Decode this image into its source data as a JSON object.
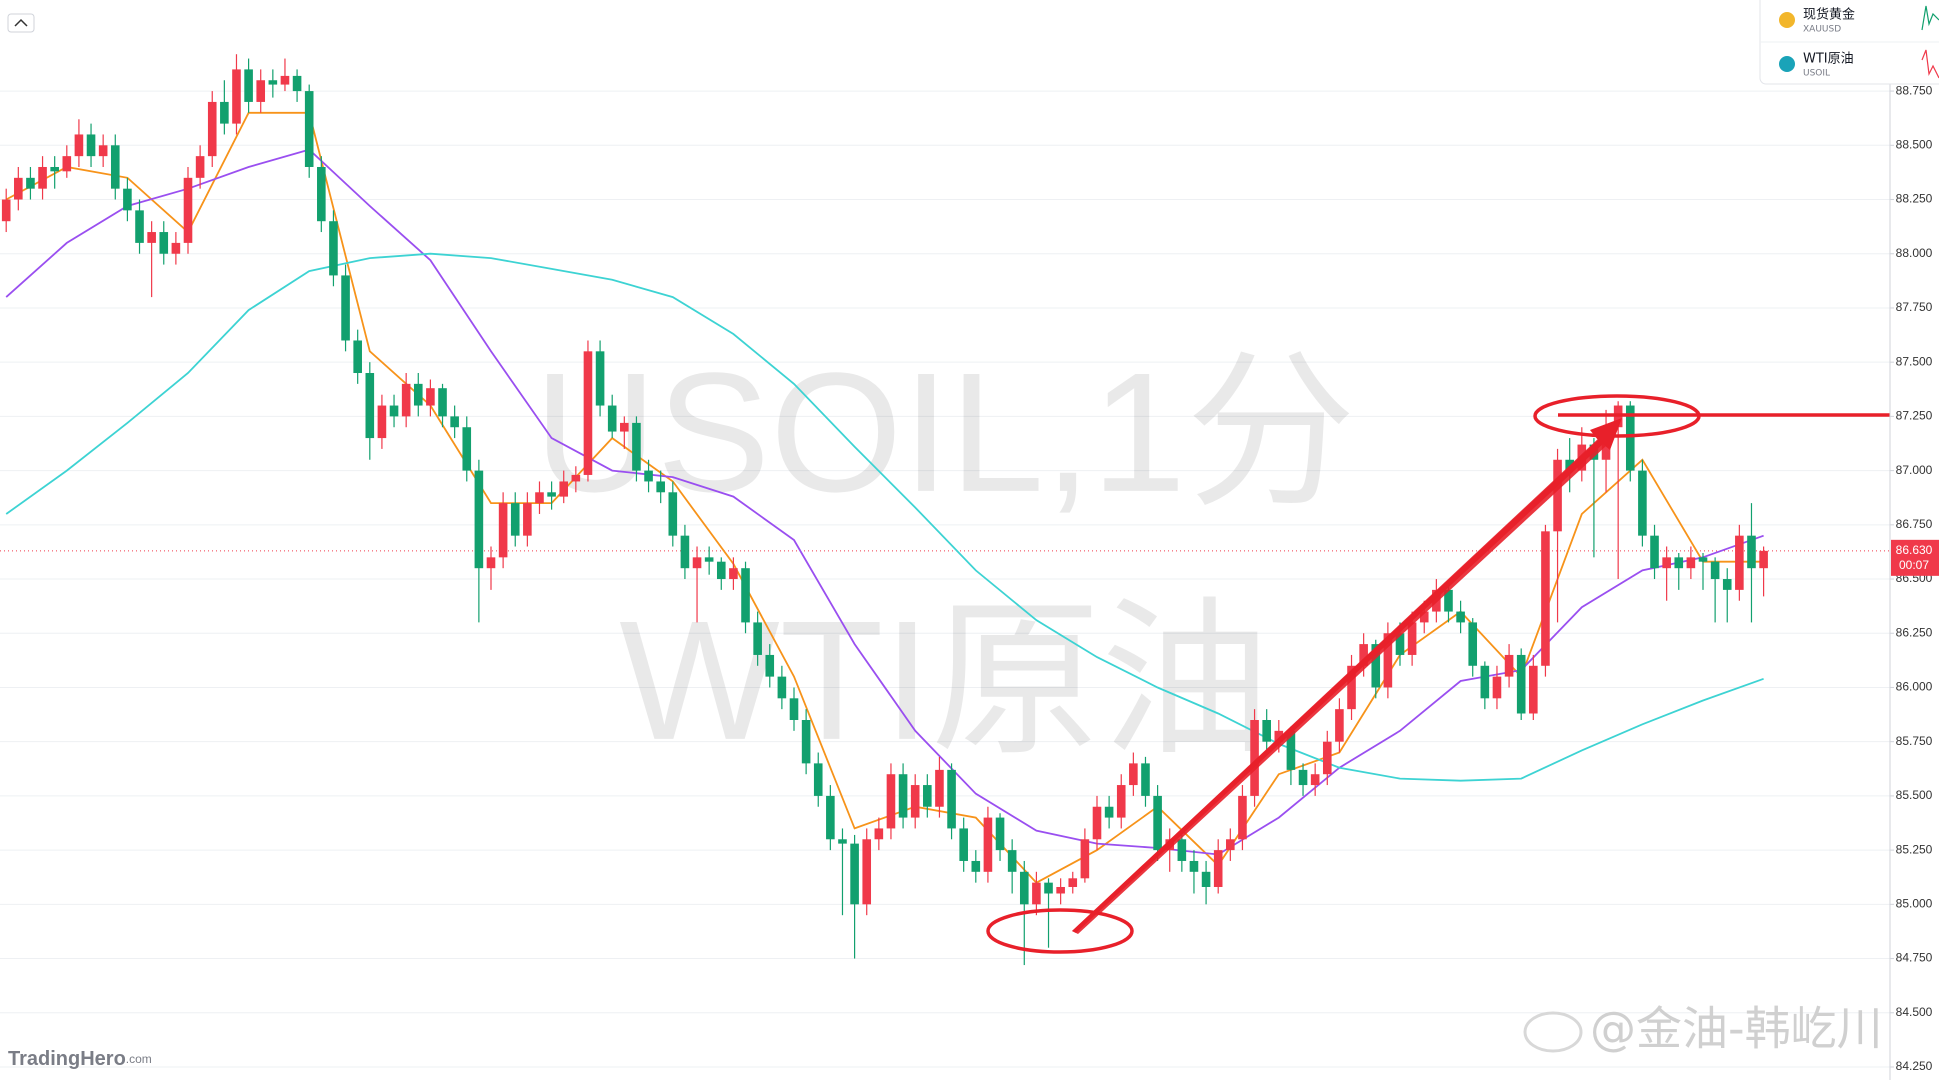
{
  "chart_data": {
    "type": "candlestick",
    "watermark": [
      "USOIL,1分",
      "WTI原油"
    ],
    "up_color": "#f0394a",
    "down_color": "#12a06e",
    "candles": [
      [
        88.15,
        88.3,
        88.1,
        88.25
      ],
      [
        88.25,
        88.4,
        88.2,
        88.35
      ],
      [
        88.35,
        88.4,
        88.25,
        88.3
      ],
      [
        88.3,
        88.45,
        88.25,
        88.4
      ],
      [
        88.4,
        88.45,
        88.3,
        88.38
      ],
      [
        88.38,
        88.5,
        88.35,
        88.45
      ],
      [
        88.45,
        88.62,
        88.4,
        88.55
      ],
      [
        88.55,
        88.6,
        88.4,
        88.45
      ],
      [
        88.45,
        88.55,
        88.4,
        88.5
      ],
      [
        88.5,
        88.55,
        88.25,
        88.3
      ],
      [
        88.3,
        88.35,
        88.15,
        88.2
      ],
      [
        88.2,
        88.25,
        88.0,
        88.05
      ],
      [
        88.05,
        88.15,
        87.8,
        88.1
      ],
      [
        88.1,
        88.15,
        87.95,
        88.0
      ],
      [
        88.0,
        88.1,
        87.95,
        88.05
      ],
      [
        88.05,
        88.4,
        88.0,
        88.35
      ],
      [
        88.35,
        88.5,
        88.3,
        88.45
      ],
      [
        88.45,
        88.75,
        88.4,
        88.7
      ],
      [
        88.7,
        88.8,
        88.55,
        88.6
      ],
      [
        88.6,
        88.92,
        88.55,
        88.85
      ],
      [
        88.85,
        88.9,
        88.65,
        88.7
      ],
      [
        88.7,
        88.85,
        88.65,
        88.8
      ],
      [
        88.8,
        88.85,
        88.72,
        88.78
      ],
      [
        88.78,
        88.9,
        88.75,
        88.82
      ],
      [
        88.82,
        88.85,
        88.7,
        88.75
      ],
      [
        88.75,
        88.78,
        88.35,
        88.4
      ],
      [
        88.4,
        88.45,
        88.1,
        88.15
      ],
      [
        88.15,
        88.2,
        87.85,
        87.9
      ],
      [
        87.9,
        87.95,
        87.55,
        87.6
      ],
      [
        87.6,
        87.65,
        87.4,
        87.45
      ],
      [
        87.45,
        87.5,
        87.05,
        87.15
      ],
      [
        87.15,
        87.35,
        87.1,
        87.3
      ],
      [
        87.3,
        87.35,
        87.2,
        87.25
      ],
      [
        87.25,
        87.45,
        87.2,
        87.4
      ],
      [
        87.4,
        87.45,
        87.25,
        87.3
      ],
      [
        87.3,
        87.42,
        87.25,
        87.38
      ],
      [
        87.38,
        87.4,
        87.2,
        87.25
      ],
      [
        87.25,
        87.3,
        87.15,
        87.2
      ],
      [
        87.2,
        87.25,
        86.95,
        87.0
      ],
      [
        87.0,
        87.05,
        86.3,
        86.55
      ],
      [
        86.55,
        86.65,
        86.45,
        86.6
      ],
      [
        86.6,
        86.9,
        86.55,
        86.85
      ],
      [
        86.85,
        86.9,
        86.65,
        86.7
      ],
      [
        86.7,
        86.9,
        86.65,
        86.85
      ],
      [
        86.85,
        86.95,
        86.8,
        86.9
      ],
      [
        86.9,
        86.95,
        86.82,
        86.88
      ],
      [
        86.88,
        87.0,
        86.85,
        86.95
      ],
      [
        86.95,
        87.02,
        86.9,
        86.98
      ],
      [
        86.98,
        87.6,
        86.95,
        87.55
      ],
      [
        87.55,
        87.6,
        87.25,
        87.3
      ],
      [
        87.3,
        87.35,
        87.15,
        87.18
      ],
      [
        87.18,
        87.25,
        87.1,
        87.22
      ],
      [
        87.22,
        87.25,
        86.95,
        87.0
      ],
      [
        87.0,
        87.05,
        86.9,
        86.95
      ],
      [
        86.95,
        87.0,
        86.85,
        86.9
      ],
      [
        86.9,
        86.95,
        86.65,
        86.7
      ],
      [
        86.7,
        86.75,
        86.5,
        86.55
      ],
      [
        86.55,
        86.65,
        86.3,
        86.6
      ],
      [
        86.6,
        86.65,
        86.52,
        86.58
      ],
      [
        86.58,
        86.6,
        86.45,
        86.5
      ],
      [
        86.5,
        86.6,
        86.45,
        86.55
      ],
      [
        86.55,
        86.58,
        86.25,
        86.3
      ],
      [
        86.3,
        86.35,
        86.1,
        86.15
      ],
      [
        86.15,
        86.2,
        86.0,
        86.05
      ],
      [
        86.05,
        86.1,
        85.9,
        85.95
      ],
      [
        85.95,
        86.0,
        85.8,
        85.85
      ],
      [
        85.85,
        85.9,
        85.6,
        85.65
      ],
      [
        85.65,
        85.7,
        85.45,
        85.5
      ],
      [
        85.5,
        85.55,
        85.25,
        85.3
      ],
      [
        85.3,
        85.35,
        84.95,
        85.28
      ],
      [
        85.28,
        85.32,
        84.75,
        85.0
      ],
      [
        85.0,
        85.35,
        84.95,
        85.3
      ],
      [
        85.3,
        85.4,
        85.25,
        85.35
      ],
      [
        85.35,
        85.65,
        85.3,
        85.6
      ],
      [
        85.6,
        85.65,
        85.35,
        85.4
      ],
      [
        85.4,
        85.6,
        85.35,
        85.55
      ],
      [
        85.55,
        85.6,
        85.4,
        85.45
      ],
      [
        85.45,
        85.68,
        85.4,
        85.62
      ],
      [
        85.62,
        85.65,
        85.3,
        85.35
      ],
      [
        85.35,
        85.4,
        85.15,
        85.2
      ],
      [
        85.2,
        85.25,
        85.1,
        85.15
      ],
      [
        85.15,
        85.45,
        85.1,
        85.4
      ],
      [
        85.4,
        85.42,
        85.2,
        85.25
      ],
      [
        85.25,
        85.3,
        85.05,
        85.15
      ],
      [
        85.15,
        85.2,
        84.72,
        85.0
      ],
      [
        85.0,
        85.15,
        84.95,
        85.1
      ],
      [
        85.1,
        85.12,
        84.8,
        85.05
      ],
      [
        85.05,
        85.12,
        85.0,
        85.08
      ],
      [
        85.08,
        85.15,
        85.05,
        85.12
      ],
      [
        85.12,
        85.35,
        85.1,
        85.3
      ],
      [
        85.3,
        85.5,
        85.25,
        85.45
      ],
      [
        85.45,
        85.5,
        85.35,
        85.4
      ],
      [
        85.4,
        85.6,
        85.35,
        85.55
      ],
      [
        85.55,
        85.7,
        85.5,
        85.65
      ],
      [
        85.65,
        85.68,
        85.45,
        85.5
      ],
      [
        85.5,
        85.55,
        85.2,
        85.25
      ],
      [
        85.25,
        85.35,
        85.15,
        85.3
      ],
      [
        85.3,
        85.32,
        85.15,
        85.2
      ],
      [
        85.2,
        85.25,
        85.05,
        85.15
      ],
      [
        85.15,
        85.2,
        85.0,
        85.08
      ],
      [
        85.08,
        85.3,
        85.05,
        85.25
      ],
      [
        85.25,
        85.35,
        85.2,
        85.3
      ],
      [
        85.3,
        85.55,
        85.25,
        85.5
      ],
      [
        85.5,
        85.9,
        85.45,
        85.85
      ],
      [
        85.85,
        85.9,
        85.7,
        85.75
      ],
      [
        85.75,
        85.85,
        85.7,
        85.8
      ],
      [
        85.8,
        85.82,
        85.55,
        85.62
      ],
      [
        85.62,
        85.65,
        85.5,
        85.55
      ],
      [
        85.55,
        85.65,
        85.5,
        85.6
      ],
      [
        85.6,
        85.8,
        85.55,
        85.75
      ],
      [
        85.75,
        85.95,
        85.7,
        85.9
      ],
      [
        85.9,
        86.15,
        85.85,
        86.1
      ],
      [
        86.1,
        86.25,
        86.05,
        86.2
      ],
      [
        86.2,
        86.22,
        85.95,
        86.0
      ],
      [
        86.0,
        86.3,
        85.95,
        86.25
      ],
      [
        86.25,
        86.3,
        86.1,
        86.15
      ],
      [
        86.15,
        86.35,
        86.1,
        86.3
      ],
      [
        86.3,
        86.4,
        86.25,
        86.35
      ],
      [
        86.35,
        86.5,
        86.3,
        86.45
      ],
      [
        86.45,
        86.48,
        86.3,
        86.35
      ],
      [
        86.35,
        86.4,
        86.25,
        86.3
      ],
      [
        86.3,
        86.32,
        86.05,
        86.1
      ],
      [
        86.1,
        86.12,
        85.9,
        85.95
      ],
      [
        85.95,
        86.1,
        85.9,
        86.05
      ],
      [
        86.05,
        86.2,
        86.0,
        86.15
      ],
      [
        86.15,
        86.18,
        85.85,
        85.88
      ],
      [
        85.88,
        86.15,
        85.85,
        86.1
      ],
      [
        86.1,
        86.75,
        86.05,
        86.72
      ],
      [
        86.72,
        87.1,
        86.3,
        87.05
      ],
      [
        87.05,
        87.15,
        86.9,
        87.0
      ],
      [
        87.0,
        87.2,
        86.95,
        87.12
      ],
      [
        87.12,
        87.15,
        86.6,
        87.05
      ],
      [
        87.05,
        87.28,
        86.9,
        87.2
      ],
      [
        87.2,
        87.32,
        86.5,
        87.3
      ],
      [
        87.3,
        87.32,
        86.95,
        87.0
      ],
      [
        87.0,
        87.05,
        86.65,
        86.7
      ],
      [
        86.7,
        86.75,
        86.5,
        86.55
      ],
      [
        86.55,
        86.65,
        86.4,
        86.6
      ],
      [
        86.6,
        86.62,
        86.45,
        86.55
      ],
      [
        86.55,
        86.65,
        86.5,
        86.6
      ],
      [
        86.6,
        86.62,
        86.45,
        86.58
      ],
      [
        86.58,
        86.6,
        86.3,
        86.5
      ],
      [
        86.5,
        86.55,
        86.3,
        86.45
      ],
      [
        86.45,
        86.75,
        86.4,
        86.7
      ],
      [
        86.7,
        86.85,
        86.3,
        86.55
      ],
      [
        86.55,
        86.65,
        86.42,
        86.63
      ]
    ],
    "ma_lines": [
      {
        "color": "#f7931a",
        "x": [
          0,
          5,
          10,
          15,
          20,
          25,
          30,
          35,
          40,
          45,
          50,
          55,
          60,
          65,
          70,
          75,
          80,
          85,
          90,
          95,
          100,
          105,
          110,
          115,
          120,
          125,
          130,
          135,
          140,
          145
        ],
        "values": [
          88.25,
          88.4,
          88.35,
          88.1,
          88.65,
          88.65,
          87.55,
          87.3,
          86.85,
          86.85,
          87.15,
          86.95,
          86.57,
          86.05,
          85.35,
          85.45,
          85.4,
          85.1,
          85.25,
          85.45,
          85.18,
          85.6,
          85.7,
          86.15,
          86.35,
          86.05,
          86.8,
          87.05,
          86.58,
          86.58
        ]
      },
      {
        "color": "#9a4ff0",
        "x": [
          0,
          5,
          10,
          15,
          20,
          25,
          30,
          35,
          40,
          45,
          50,
          55,
          60,
          65,
          70,
          75,
          80,
          85,
          90,
          95,
          100,
          105,
          110,
          115,
          120,
          125,
          130,
          135,
          140,
          145
        ],
        "values": [
          87.8,
          88.05,
          88.22,
          88.3,
          88.4,
          88.48,
          88.22,
          87.97,
          87.55,
          87.15,
          87.0,
          86.97,
          86.88,
          86.68,
          86.2,
          85.8,
          85.51,
          85.34,
          85.28,
          85.26,
          85.23,
          85.4,
          85.63,
          85.8,
          86.03,
          86.08,
          86.37,
          86.54,
          86.6,
          86.7
        ]
      },
      {
        "color": "#3dd3d3",
        "x": [
          0,
          5,
          10,
          15,
          20,
          25,
          30,
          35,
          40,
          45,
          50,
          55,
          60,
          65,
          70,
          75,
          80,
          85,
          90,
          95,
          100,
          105,
          110,
          115,
          120,
          125,
          130,
          135,
          140,
          145
        ],
        "values": [
          86.8,
          87.0,
          87.22,
          87.45,
          87.74,
          87.92,
          87.98,
          88.0,
          87.98,
          87.93,
          87.88,
          87.8,
          87.63,
          87.4,
          87.11,
          86.83,
          86.54,
          86.31,
          86.14,
          86.0,
          85.88,
          85.74,
          85.63,
          85.58,
          85.57,
          85.58,
          85.71,
          85.83,
          85.94,
          86.04
        ]
      }
    ],
    "ylim": [
      84.19,
      89.17
    ],
    "yticks": [
      {
        "value": 84.25,
        "label": "84.250"
      },
      {
        "value": 84.5,
        "label": "84.500"
      },
      {
        "value": 84.75,
        "label": "84.750"
      },
      {
        "value": 85,
        "label": "85.000"
      },
      {
        "value": 85.25,
        "label": "85.250"
      },
      {
        "value": 85.5,
        "label": "85.500"
      },
      {
        "value": 85.75,
        "label": "85.750"
      },
      {
        "value": 86,
        "label": "86.000"
      },
      {
        "value": 86.25,
        "label": "86.250"
      },
      {
        "value": 86.5,
        "label": "86.500"
      },
      {
        "value": 86.75,
        "label": "86.750"
      },
      {
        "value": 87,
        "label": "87.000"
      },
      {
        "value": 87.25,
        "label": "87.250"
      },
      {
        "value": 87.5,
        "label": "87.500"
      },
      {
        "value": 87.75,
        "label": "87.750"
      },
      {
        "value": 88,
        "label": "88.000"
      },
      {
        "value": 88.25,
        "label": "88.250"
      },
      {
        "value": 88.5,
        "label": "88.500"
      },
      {
        "value": 88.75,
        "label": "88.750"
      }
    ],
    "grid": true,
    "last_price": {
      "value": 86.63,
      "label": "86.630"
    },
    "countdown": "00:07"
  },
  "watchlist": [
    {
      "name": "现货黄金",
      "symbol": "XAUUSD"
    },
    {
      "name": "WTI原油",
      "symbol": "USOIL"
    }
  ],
  "brand": {
    "name": "TradingHero",
    "suffix": ".com"
  },
  "credit": "@金油-韩屹川"
}
